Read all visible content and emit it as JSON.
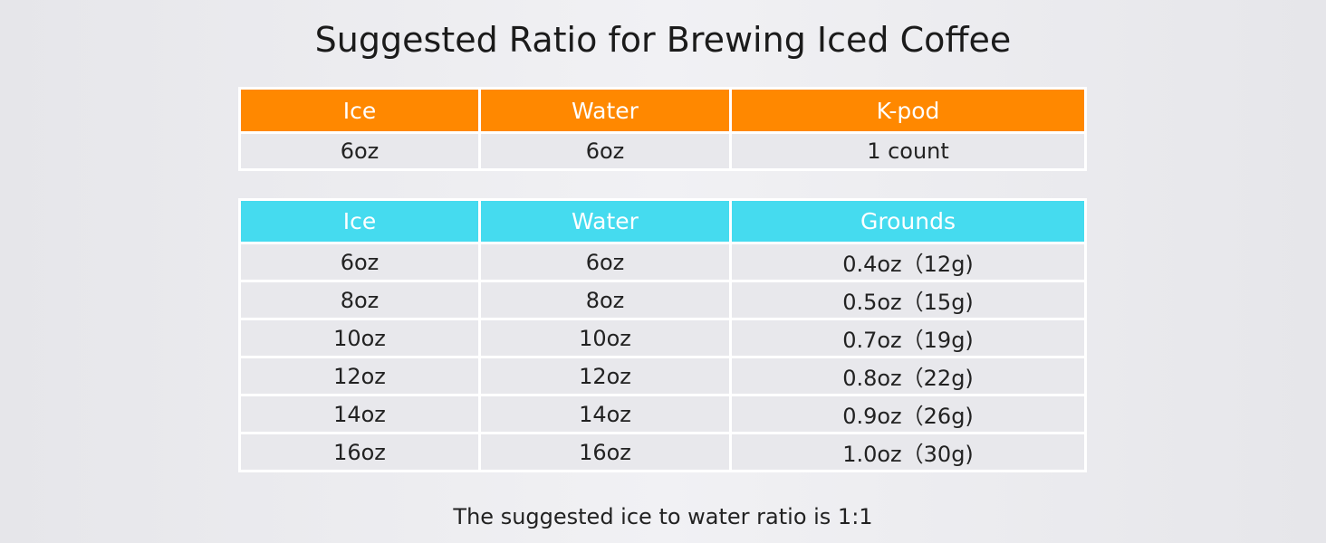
{
  "title": "Suggested Ratio for Brewing Iced Coffee",
  "kpod_table": {
    "header": [
      "Ice",
      "Water",
      "K-pod"
    ],
    "rows": [
      [
        "6oz",
        "6oz",
        "1 count"
      ]
    ]
  },
  "grounds_table": {
    "header": [
      "Ice",
      "Water",
      "Grounds"
    ],
    "rows": [
      [
        "6oz",
        "6oz",
        "0.4oz（12g)"
      ],
      [
        "8oz",
        "8oz",
        "0.5oz（15g)"
      ],
      [
        "10oz",
        "10oz",
        "0.7oz（19g)"
      ],
      [
        "12oz",
        "12oz",
        "0.8oz（22g)"
      ],
      [
        "14oz",
        "14oz",
        "0.9oz（26g)"
      ],
      [
        "16oz",
        "16oz",
        "1.0oz（30g)"
      ]
    ]
  },
  "footnote": "The suggested ice to water ratio is 1:1"
}
